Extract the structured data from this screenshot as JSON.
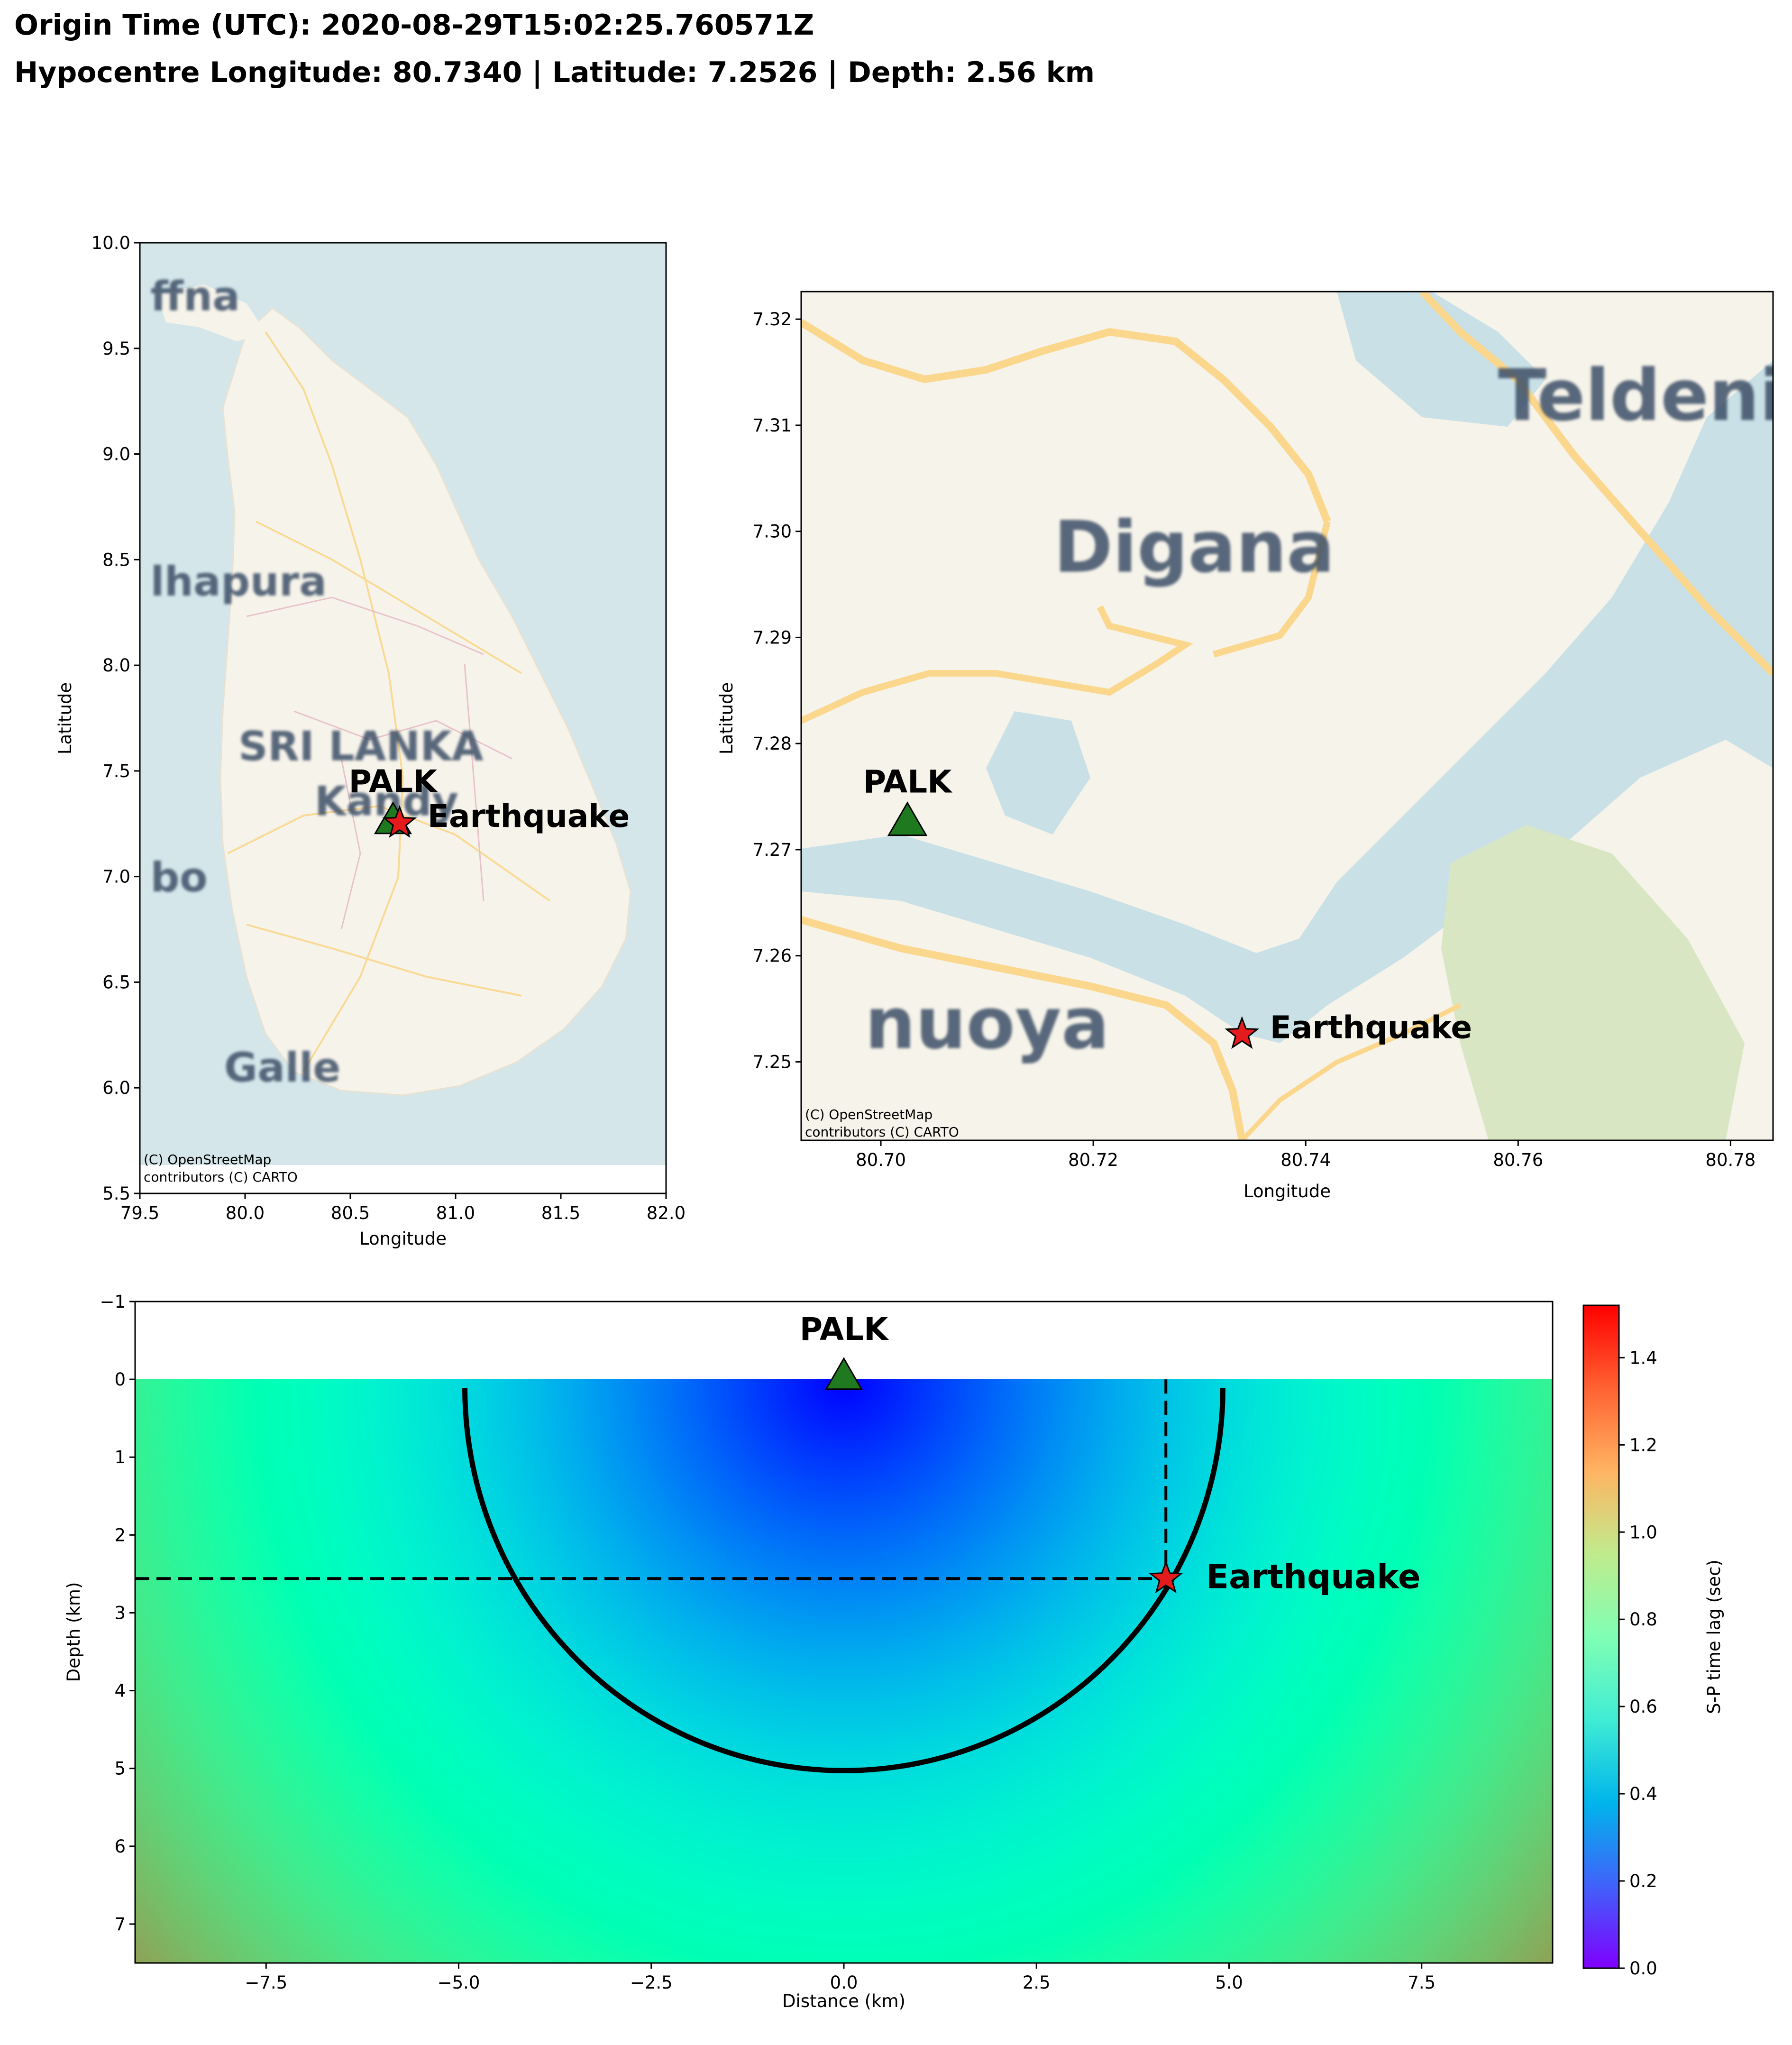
{
  "header": {
    "origin_time": "Origin Time (UTC): 2020-08-29T15:02:25.760571Z",
    "hypocentre": "Hypocentre Longitude: 80.7340 | Latitude: 7.2526 | Depth: 2.56 km"
  },
  "colors": {
    "ocean": "#d4e6ea",
    "land": "#f6f3ea",
    "water": "#c8e0e6",
    "road": "#fad78c",
    "park": "#d8e6c4",
    "station_marker": "#1f7a1f",
    "quake_marker": "#e41a1c"
  },
  "chart_data": [
    {
      "type": "scatter",
      "xlabel": "Longitude",
      "ylabel": "Latitude",
      "xlim": [
        79.5,
        82.0
      ],
      "ylim": [
        5.5,
        10.0
      ],
      "xticks": [
        "79.5",
        "80.0",
        "80.5",
        "81.0",
        "81.5",
        "82.0"
      ],
      "yticks": [
        "5.5",
        "6.0",
        "6.5",
        "7.0",
        "7.5",
        "8.0",
        "8.5",
        "9.0",
        "9.5",
        "10.0"
      ],
      "points": [
        {
          "name": "PALK",
          "x": 80.7025,
          "y": 7.2728,
          "marker": "triangle"
        },
        {
          "name": "Earthquake",
          "x": 80.734,
          "y": 7.2526,
          "marker": "star"
        }
      ],
      "basemap_labels": [
        {
          "text": "ffna",
          "x": 79.55,
          "y": 9.68
        },
        {
          "text": "lhapura",
          "x": 79.55,
          "y": 8.33
        },
        {
          "text": "SRI LANKA",
          "x": 80.55,
          "y": 7.55
        },
        {
          "text": "Kandy",
          "x": 80.33,
          "y": 7.29
        },
        {
          "text": "bo",
          "x": 79.55,
          "y": 6.93
        },
        {
          "text": "Galle",
          "x": 79.9,
          "y": 6.03
        }
      ],
      "attribution": [
        "(C) OpenStreetMap",
        "contributors (C) CARTO"
      ]
    },
    {
      "type": "scatter",
      "xlabel": "Longitude",
      "ylabel": "Latitude",
      "xlim": [
        80.6925,
        80.784
      ],
      "ylim": [
        7.2426,
        7.3226
      ],
      "xticks": [
        "80.70",
        "80.72",
        "80.74",
        "80.76",
        "80.78"
      ],
      "yticks": [
        "7.25",
        "7.26",
        "7.27",
        "7.28",
        "7.29",
        "7.30",
        "7.31",
        "7.32"
      ],
      "points": [
        {
          "name": "PALK",
          "x": 80.7025,
          "y": 7.2728,
          "marker": "triangle"
        },
        {
          "name": "Earthquake",
          "x": 80.734,
          "y": 7.2526,
          "marker": "star"
        }
      ],
      "basemap_labels": [
        {
          "text": "Teldeniya",
          "x": 80.776,
          "y": 7.3105
        },
        {
          "text": "Digana",
          "x": 80.7295,
          "y": 7.2962
        },
        {
          "text": "nuoya",
          "x": 80.6985,
          "y": 7.2513
        }
      ],
      "attribution": [
        "(C) OpenStreetMap",
        "contributors (C) CARTO"
      ]
    },
    {
      "type": "heatmap",
      "xlabel": "Distance (km)",
      "ylabel": "Depth (km)",
      "xlim": [
        -9.2,
        9.2
      ],
      "ylim": [
        7.5,
        -1.0
      ],
      "xticks": [
        -7.5,
        -5.0,
        -2.5,
        0.0,
        2.5,
        5.0,
        7.5
      ],
      "xtick_labels": [
        "−7.5",
        "−5.0",
        "−2.5",
        "0.0",
        "2.5",
        "5.0",
        "7.5"
      ],
      "yticks": [
        -1,
        0,
        1,
        2,
        3,
        4,
        5,
        6,
        7
      ],
      "ytick_labels": [
        "−1",
        "0",
        "1",
        "2",
        "3",
        "4",
        "5",
        "6",
        "7"
      ],
      "colormap": "rainbow",
      "colorbar": {
        "label": "S-P time lag (sec)",
        "range": [
          0.0,
          1.52
        ],
        "ticks": [
          "0.0",
          "0.2",
          "0.4",
          "0.6",
          "0.8",
          "1.0",
          "1.2",
          "1.4"
        ]
      },
      "station": {
        "name": "PALK",
        "distance": 0.0,
        "depth": 0.0
      },
      "earthquake": {
        "name": "Earthquake",
        "distance": 4.18,
        "depth": 2.56
      },
      "circle_radius_km": 4.92,
      "color_model": {
        "type": "radial_s_p_lag",
        "coefficient_sec_per_km": 0.1
      }
    }
  ]
}
